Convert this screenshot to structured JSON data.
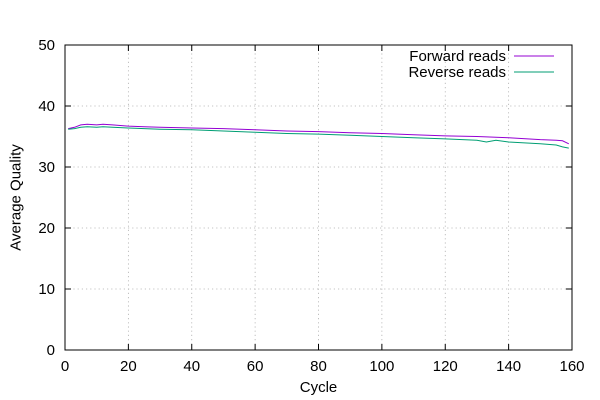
{
  "chart_data": {
    "type": "line",
    "title": "",
    "xlabel": "Cycle",
    "ylabel": "Average Quality",
    "xlim": [
      0,
      160
    ],
    "ylim": [
      0,
      50
    ],
    "xticks": [
      0,
      20,
      40,
      60,
      80,
      100,
      120,
      140,
      160
    ],
    "yticks": [
      0,
      10,
      20,
      30,
      40,
      50
    ],
    "grid": true,
    "legend_position": "top-right",
    "series": [
      {
        "name": "Forward reads",
        "color": "#9400d3",
        "x": [
          1,
          3,
          5,
          7,
          10,
          12,
          15,
          20,
          25,
          30,
          40,
          50,
          60,
          70,
          80,
          90,
          100,
          110,
          120,
          130,
          140,
          150,
          155,
          157,
          159
        ],
        "y": [
          36.3,
          36.5,
          36.9,
          37.0,
          36.9,
          37.0,
          36.9,
          36.7,
          36.6,
          36.5,
          36.4,
          36.3,
          36.1,
          35.9,
          35.8,
          35.6,
          35.5,
          35.3,
          35.1,
          35.0,
          34.8,
          34.5,
          34.4,
          34.3,
          33.8
        ]
      },
      {
        "name": "Reverse reads",
        "color": "#009e73",
        "x": [
          1,
          3,
          5,
          7,
          10,
          12,
          15,
          20,
          25,
          30,
          40,
          50,
          60,
          70,
          80,
          90,
          100,
          110,
          120,
          130,
          133,
          136,
          140,
          150,
          155,
          157,
          159
        ],
        "y": [
          36.2,
          36.3,
          36.5,
          36.6,
          36.5,
          36.6,
          36.5,
          36.4,
          36.3,
          36.2,
          36.1,
          35.9,
          35.7,
          35.5,
          35.4,
          35.2,
          35.0,
          34.8,
          34.6,
          34.4,
          34.1,
          34.4,
          34.1,
          33.8,
          33.6,
          33.3,
          33.1
        ]
      }
    ]
  }
}
